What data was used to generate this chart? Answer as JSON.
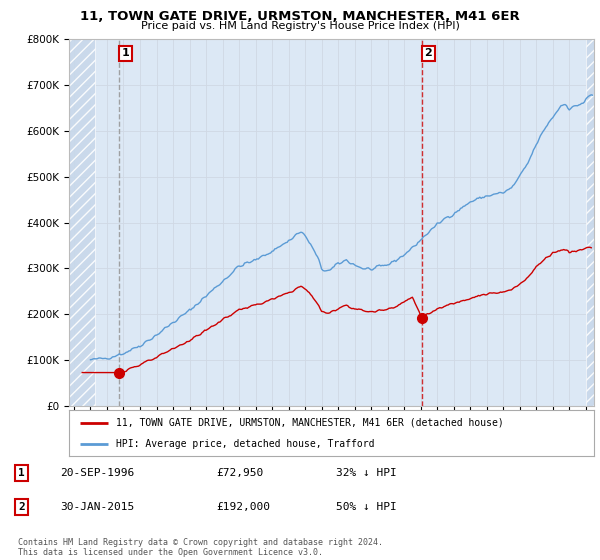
{
  "title": "11, TOWN GATE DRIVE, URMSTON, MANCHESTER, M41 6ER",
  "subtitle": "Price paid vs. HM Land Registry's House Price Index (HPI)",
  "legend_label_red": "11, TOWN GATE DRIVE, URMSTON, MANCHESTER, M41 6ER (detached house)",
  "legend_label_blue": "HPI: Average price, detached house, Trafford",
  "annotation1_label": "1",
  "annotation1_date": "20-SEP-1996",
  "annotation1_price": "£72,950",
  "annotation1_hpi": "32% ↓ HPI",
  "annotation2_label": "2",
  "annotation2_date": "30-JAN-2015",
  "annotation2_price": "£192,000",
  "annotation2_hpi": "50% ↓ HPI",
  "footnote": "Contains HM Land Registry data © Crown copyright and database right 2024.\nThis data is licensed under the Open Government Licence v3.0.",
  "red_color": "#cc0000",
  "blue_color": "#5b9bd5",
  "vline1_color": "#aaaaaa",
  "vline2_color": "#cc0000",
  "grid_color": "#d0d8e4",
  "background_color": "#ffffff",
  "plot_bg_color": "#dce8f5",
  "hatch_bg_color": "#c8d8ea",
  "ylim": [
    0,
    800000
  ],
  "yticks": [
    0,
    100000,
    200000,
    300000,
    400000,
    500000,
    600000,
    700000,
    800000
  ],
  "ytick_labels": [
    "£0",
    "£100K",
    "£200K",
    "£300K",
    "£400K",
    "£500K",
    "£600K",
    "£700K",
    "£800K"
  ],
  "xlim_start": 1993.7,
  "xlim_end": 2025.5,
  "hatch_end": 1995.3,
  "sale1_x": 1996.73,
  "sale1_y": 72950,
  "sale2_x": 2015.08,
  "sale2_y": 192000
}
